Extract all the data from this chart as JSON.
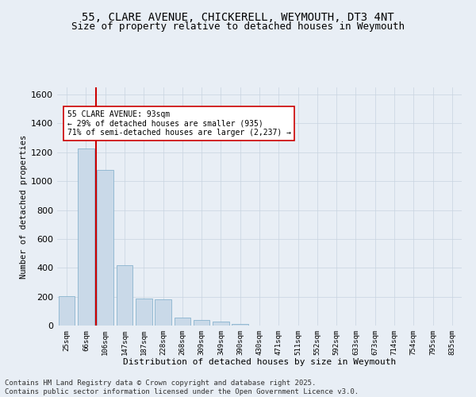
{
  "title_line1": "55, CLARE AVENUE, CHICKERELL, WEYMOUTH, DT3 4NT",
  "title_line2": "Size of property relative to detached houses in Weymouth",
  "xlabel": "Distribution of detached houses by size in Weymouth",
  "ylabel": "Number of detached properties",
  "categories": [
    "25sqm",
    "66sqm",
    "106sqm",
    "147sqm",
    "187sqm",
    "228sqm",
    "268sqm",
    "309sqm",
    "349sqm",
    "390sqm",
    "430sqm",
    "471sqm",
    "511sqm",
    "552sqm",
    "592sqm",
    "633sqm",
    "673sqm",
    "714sqm",
    "754sqm",
    "795sqm",
    "835sqm"
  ],
  "values": [
    205,
    1225,
    1080,
    420,
    185,
    180,
    55,
    40,
    30,
    10,
    0,
    0,
    0,
    0,
    0,
    0,
    0,
    0,
    0,
    0,
    0
  ],
  "bar_color": "#c9d9e8",
  "bar_edge_color": "#7aaac8",
  "vline_color": "#cc0000",
  "annotation_text": "55 CLARE AVENUE: 93sqm\n← 29% of detached houses are smaller (935)\n71% of semi-detached houses are larger (2,237) →",
  "annotation_box_facecolor": "#ffffff",
  "annotation_box_edgecolor": "#cc0000",
  "ylim": [
    0,
    1650
  ],
  "yticks": [
    0,
    200,
    400,
    600,
    800,
    1000,
    1200,
    1400,
    1600
  ],
  "grid_color": "#c8d4e0",
  "background_color": "#e8eef5",
  "axes_background": "#e8eef5",
  "footer_line1": "Contains HM Land Registry data © Crown copyright and database right 2025.",
  "footer_line2": "Contains public sector information licensed under the Open Government Licence v3.0.",
  "title_fontsize": 10,
  "subtitle_fontsize": 9,
  "annotation_fontsize": 7,
  "footer_fontsize": 6.5,
  "xlabel_fontsize": 8,
  "ylabel_fontsize": 7.5,
  "ytick_fontsize": 8,
  "xtick_fontsize": 6.5
}
